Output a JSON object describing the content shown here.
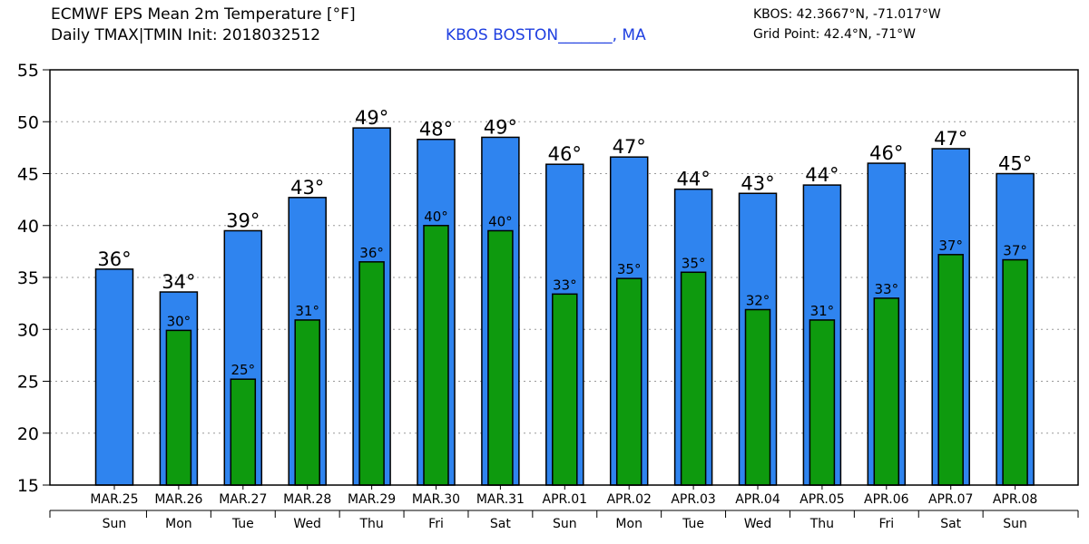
{
  "header": {
    "title_line1": "ECMWF EPS Mean 2m Temperature [°F]",
    "title_line2": "Daily TMAX|TMIN Init: 2018032512",
    "location": "KBOS BOSTON_______, MA",
    "coord_line1": "KBOS: 42.3667°N, -71.017°W",
    "coord_line2": "Grid Point: 42.4°N, -71°W"
  },
  "chart_data": {
    "type": "bar",
    "title": "ECMWF EPS Mean 2m Temperature [°F]",
    "ylim": [
      15,
      55
    ],
    "yticks": [
      15,
      20,
      25,
      30,
      35,
      40,
      45,
      50,
      55
    ],
    "grid": true,
    "categories": [
      "MAR.25",
      "MAR.26",
      "MAR.27",
      "MAR.28",
      "MAR.29",
      "MAR.30",
      "MAR.31",
      "APR.01",
      "APR.02",
      "APR.03",
      "APR.04",
      "APR.05",
      "APR.06",
      "APR.07",
      "APR.08"
    ],
    "weekdays": [
      "Sun",
      "Mon",
      "Tue",
      "Wed",
      "Thu",
      "Fri",
      "Sat",
      "Sun",
      "Mon",
      "Tue",
      "Wed",
      "Thu",
      "Fri",
      "Sat",
      "Sun"
    ],
    "series": [
      {
        "name": "TMAX",
        "color": "#2f84ef",
        "values": [
          35.8,
          33.6,
          39.5,
          42.7,
          49.4,
          48.3,
          48.5,
          45.9,
          46.6,
          43.5,
          43.1,
          43.9,
          46.0,
          47.4,
          45.0
        ],
        "labels": [
          "36°",
          "34°",
          "39°",
          "43°",
          "49°",
          "48°",
          "49°",
          "46°",
          "47°",
          "44°",
          "43°",
          "44°",
          "46°",
          "47°",
          "45°"
        ]
      },
      {
        "name": "TMIN",
        "color": "#0e9a0e",
        "values": [
          null,
          29.9,
          25.2,
          30.9,
          36.5,
          40.0,
          39.5,
          33.4,
          34.9,
          35.5,
          31.9,
          30.9,
          33.0,
          37.2,
          36.7
        ],
        "labels": [
          "",
          "30°",
          "25°",
          "31°",
          "36°",
          "40°",
          "40°",
          "33°",
          "35°",
          "35°",
          "32°",
          "31°",
          "33°",
          "37°",
          "37°"
        ]
      }
    ]
  }
}
